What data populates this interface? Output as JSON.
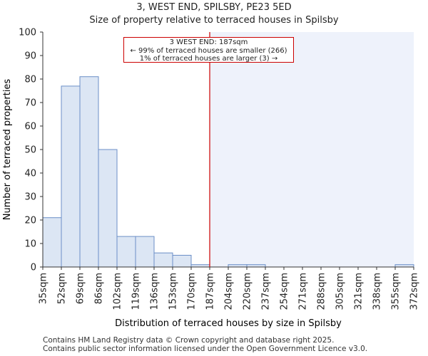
{
  "title_line1": "3, WEST END, SPILSBY, PE23 5ED",
  "title_line2": "Size of property relative to terraced houses in Spilsby",
  "footer_line1": "Contains HM Land Registry data © Crown copyright and database right 2025.",
  "footer_line2": "Contains public sector information licensed under the Open Government Licence v3.0.",
  "chart_data": {
    "type": "bar",
    "title": "Size of property relative to terraced houses in Spilsby",
    "xlabel": "Distribution of terraced houses by size in Spilsby",
    "ylabel": "Number of terraced properties",
    "ylim": [
      0,
      100
    ],
    "yticks": [
      0,
      10,
      20,
      30,
      40,
      50,
      60,
      70,
      80,
      90,
      100
    ],
    "bin_edges": [
      "35sqm",
      "52sqm",
      "69sqm",
      "86sqm",
      "102sqm",
      "119sqm",
      "136sqm",
      "153sqm",
      "170sqm",
      "187sqm",
      "204sqm",
      "220sqm",
      "237sqm",
      "254sqm",
      "271sqm",
      "288sqm",
      "305sqm",
      "321sqm",
      "338sqm",
      "355sqm",
      "372sqm"
    ],
    "values": [
      21,
      77,
      81,
      50,
      13,
      13,
      6,
      5,
      1,
      0,
      1,
      1,
      0,
      0,
      0,
      0,
      0,
      0,
      0,
      1
    ],
    "marker": {
      "label": "187sqm",
      "bin_edge_index": 9
    },
    "annotation": {
      "line1": "3 WEST END: 187sqm",
      "line2": "← 99% of terraced houses are smaller (266)",
      "line3": "1% of terraced houses are larger (3) →"
    },
    "colors": {
      "bar_fill": "#dce6f4",
      "bar_edge": "#6b8fc7",
      "highlight_region": "#eef2fb",
      "marker_line": "#cc0000"
    }
  }
}
